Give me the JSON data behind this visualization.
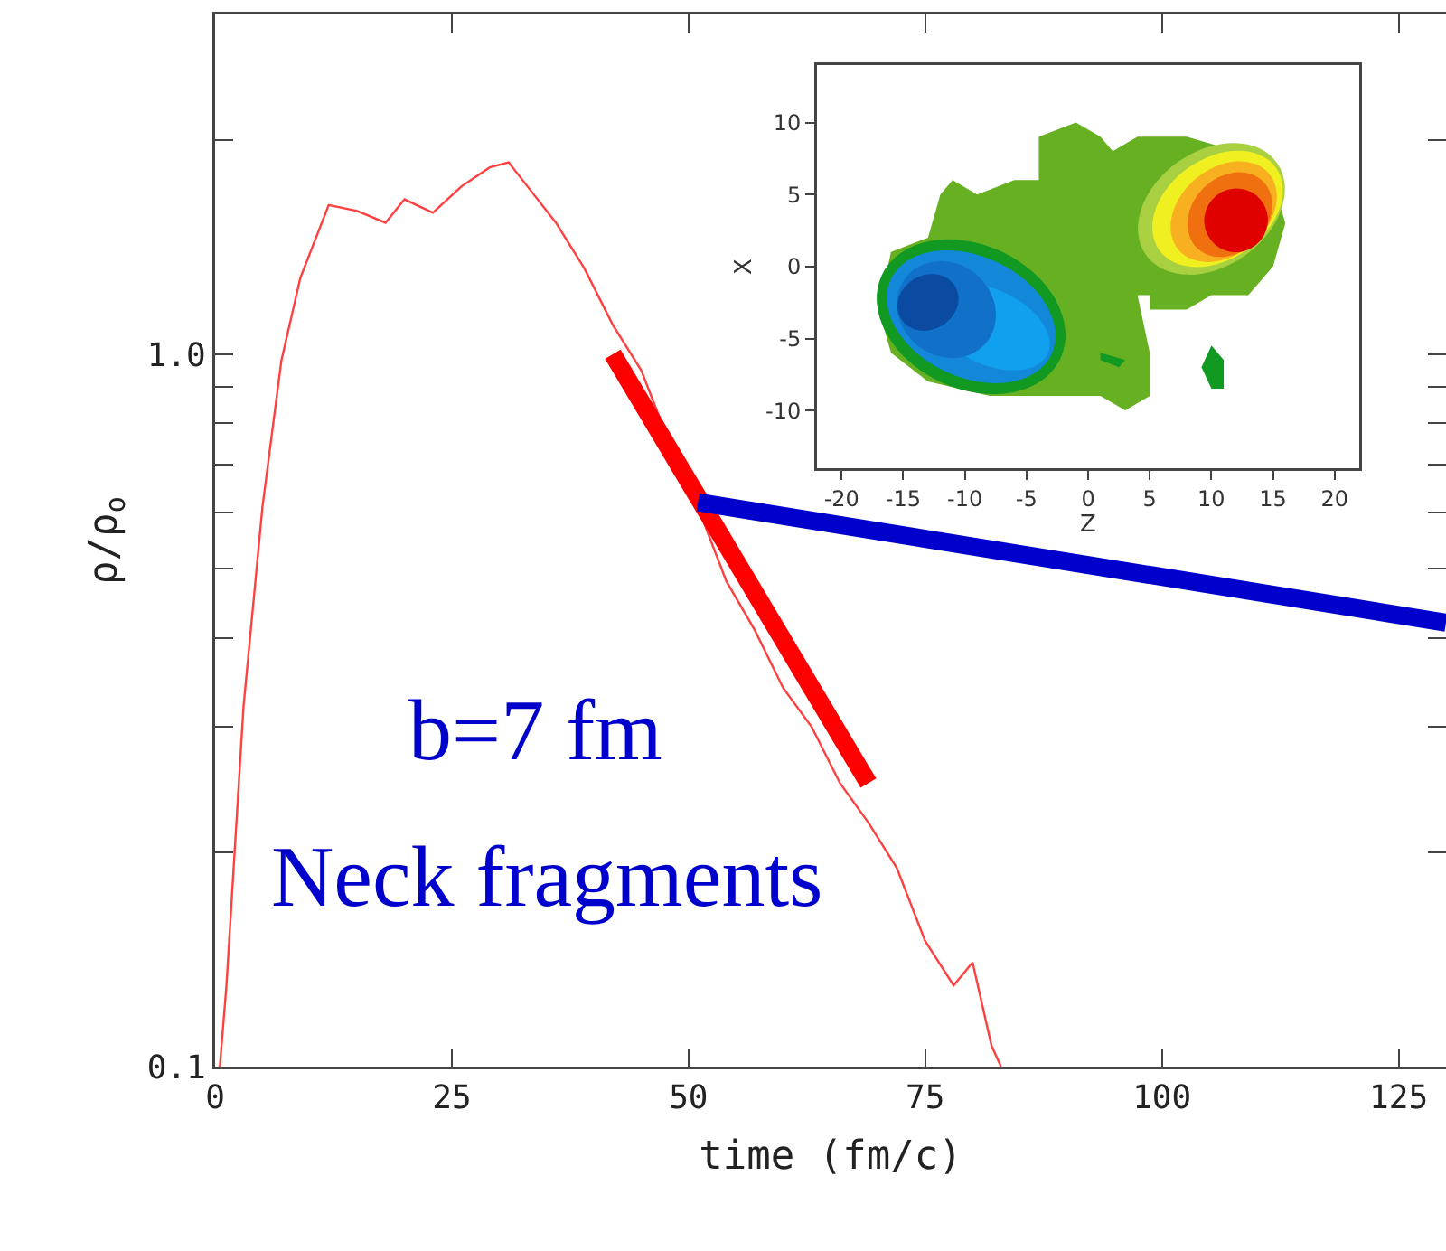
{
  "chart_data": [
    {
      "type": "line",
      "xlabel": "time (fm/c)",
      "ylabel": "ρ/ρ$_{o}$",
      "log": "y",
      "grid": false,
      "marker": "none",
      "line_style": "solid",
      "xlim": [
        0,
        130
      ],
      "xticks": [
        0,
        25,
        50,
        75,
        100,
        125
      ],
      "ylim": [
        0.1,
        3
      ],
      "yticks": [
        {
          "value": 0.1,
          "label": "0.1"
        },
        {
          "value": 0.2,
          "label": null
        },
        {
          "value": 0.3,
          "label": null
        },
        {
          "value": 0.4,
          "label": null
        },
        {
          "value": 0.5,
          "label": null
        },
        {
          "value": 0.6,
          "label": null
        },
        {
          "value": 0.7,
          "label": null
        },
        {
          "value": 0.8,
          "label": null
        },
        {
          "value": 0.9,
          "label": null
        },
        {
          "value": 1,
          "label": "1.0"
        },
        {
          "value": 2,
          "label": null
        },
        {
          "value": 3,
          "label": null
        }
      ],
      "series": [
        {
          "color": "#ff4040",
          "x": [
            0.5,
            1.2,
            3,
            5,
            7,
            9,
            12,
            15,
            18,
            20,
            23,
            26,
            29,
            31,
            33,
            36,
            39,
            42,
            45,
            48,
            51,
            54,
            57,
            60,
            63,
            66,
            69,
            72,
            75,
            78,
            80,
            82,
            83
          ],
          "values": [
            0.1,
            0.13,
            0.32,
            0.61,
            0.98,
            1.28,
            1.62,
            1.59,
            1.53,
            1.65,
            1.58,
            1.72,
            1.83,
            1.86,
            1.72,
            1.53,
            1.32,
            1.1,
            0.95,
            0.75,
            0.61,
            0.48,
            0.41,
            0.34,
            0.3,
            0.25,
            0.22,
            0.19,
            0.15,
            0.13,
            0.14,
            0.107,
            0.1
          ]
        },
        {
          "color": "#ff0000",
          "x": [
            42,
            69
          ],
          "values": [
            1.0,
            0.25
          ]
        },
        {
          "color": "#0000cc",
          "x": [
            51,
            130
          ],
          "values": [
            0.62,
            0.42
          ]
        }
      ],
      "annotations": [
        "b=7 fm",
        "Neck fragments"
      ]
    },
    {
      "type": "scatter",
      "xlabel": "Z",
      "ylabel": "X",
      "grid": false,
      "xlim": [
        -22,
        22
      ],
      "xticks": [
        -20,
        -15,
        -10,
        -5,
        0,
        5,
        10,
        15,
        20
      ],
      "ylim": [
        -14,
        14
      ],
      "yticks": [
        -10,
        -5,
        0,
        5,
        10
      ]
    }
  ]
}
